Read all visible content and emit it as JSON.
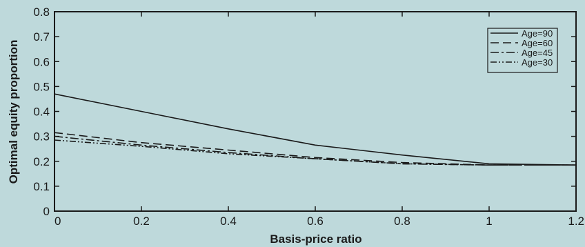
{
  "chart_data": {
    "type": "line",
    "title": "",
    "xlabel": "Basis-price ratio",
    "ylabel": "Optimal equity proportion",
    "xlim": [
      0,
      1.2
    ],
    "ylim": [
      0,
      0.8
    ],
    "xticks": [
      0,
      0.2,
      0.4,
      0.6,
      0.8,
      1,
      1.2
    ],
    "xtick_labels": [
      "0",
      "0.2",
      "0.4",
      "0.6",
      "0.8",
      "1",
      "1.2"
    ],
    "yticks": [
      0,
      0.1,
      0.2,
      0.3,
      0.4,
      0.5,
      0.6,
      0.7,
      0.8
    ],
    "ytick_labels": [
      "0",
      "0.1",
      "0.2",
      "0.3",
      "0.4",
      "0.5",
      "0.6",
      "0.7",
      "0.8"
    ],
    "grid": false,
    "legend_position": "top-right",
    "series": [
      {
        "name": "Age=90",
        "line_style": "solid",
        "x": [
          0,
          0.2,
          0.4,
          0.6,
          0.8,
          1.0,
          1.2
        ],
        "y": [
          0.47,
          0.4,
          0.33,
          0.265,
          0.225,
          0.19,
          0.185
        ]
      },
      {
        "name": "Age=60",
        "line_style": "dashed",
        "x": [
          0,
          0.2,
          0.4,
          0.6,
          0.8,
          1.0,
          1.2
        ],
        "y": [
          0.315,
          0.275,
          0.245,
          0.215,
          0.195,
          0.185,
          0.185
        ]
      },
      {
        "name": "Age=45",
        "line_style": "dash-dot",
        "x": [
          0,
          0.2,
          0.4,
          0.6,
          0.8,
          1.0,
          1.2
        ],
        "y": [
          0.3,
          0.265,
          0.235,
          0.21,
          0.19,
          0.185,
          0.185
        ]
      },
      {
        "name": "Age=30",
        "line_style": "dash-dot-dot",
        "x": [
          0,
          0.2,
          0.4,
          0.6,
          0.8,
          1.0,
          1.2
        ],
        "y": [
          0.285,
          0.26,
          0.23,
          0.21,
          0.19,
          0.185,
          0.185
        ]
      }
    ],
    "colors": {
      "background": "#bed9db",
      "line": "#1a1a1a"
    }
  }
}
